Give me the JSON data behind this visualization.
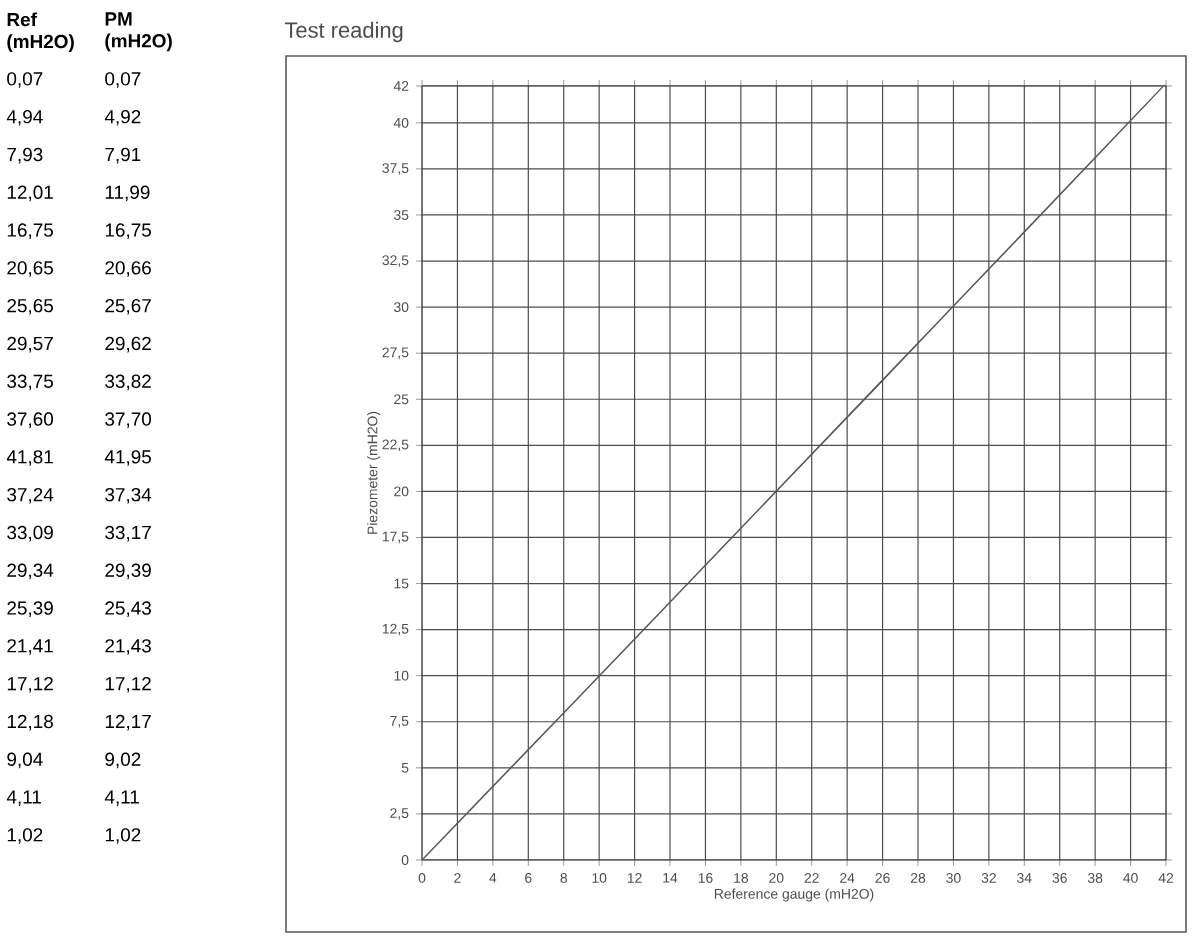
{
  "chart_data": {
    "type": "line",
    "title": "Test reading",
    "xlabel": "Reference gauge (mH2O)",
    "ylabel": "Piezometer (mH2O)",
    "x": [
      0.07,
      4.94,
      7.93,
      12.01,
      16.75,
      20.65,
      25.65,
      29.57,
      33.75,
      37.6,
      41.81,
      37.24,
      33.09,
      29.34,
      25.39,
      21.41,
      17.12,
      12.18,
      9.04,
      4.11,
      1.02
    ],
    "series": [
      {
        "color": "#555555",
        "values": [
          0.07,
          4.92,
          7.91,
          11.99,
          16.75,
          20.66,
          25.67,
          29.62,
          33.82,
          37.7,
          41.95,
          37.34,
          33.17,
          29.39,
          25.43,
          21.43,
          17.12,
          12.17,
          9.02,
          4.11,
          1.02
        ]
      }
    ],
    "annotations": [
      "Ref (mH2O)",
      "PM (mH2O)",
      "0,07",
      "4,94",
      "7,93",
      "12,01",
      "16,75",
      "20,65",
      "25,65",
      "29,57",
      "33,75",
      "37,60",
      "41,81",
      "37,24",
      "33,09",
      "29,34",
      "25,39",
      "21,41",
      "17,12",
      "12,18",
      "9,04",
      "4,11",
      "1,02",
      "0,07",
      "4,92",
      "7,91",
      "11,99",
      "16,75",
      "20,66",
      "25,67",
      "29,62",
      "33,82",
      "37,70",
      "41,95",
      "37,34",
      "33,17",
      "29,39",
      "25,43",
      "21,43",
      "17,12",
      "12,17",
      "9,02",
      "4,11",
      "1,02"
    ],
    "xlim": [
      0,
      42
    ],
    "ylim": [
      0,
      42
    ],
    "xticks": [
      0,
      2,
      4,
      6,
      8,
      10,
      12,
      14,
      16,
      18,
      20,
      22,
      24,
      26,
      28,
      30,
      32,
      34,
      36,
      38,
      40,
      42
    ],
    "yticks": [
      0,
      {
        "value": 2.5,
        "label": "2,5"
      },
      5,
      {
        "value": 7.5,
        "label": "7,5"
      },
      10,
      {
        "value": 12.5,
        "label": "12,5"
      },
      15,
      {
        "value": 17.5,
        "label": "17,5"
      },
      20,
      {
        "value": 22.5,
        "label": "22,5"
      },
      25,
      {
        "value": 27.5,
        "label": "27,5"
      },
      30,
      {
        "value": 32.5,
        "label": "32,5"
      },
      35,
      {
        "value": 37.5,
        "label": "37,5"
      },
      40,
      42
    ],
    "grid": true,
    "marker": "none",
    "line_style": "solid"
  }
}
